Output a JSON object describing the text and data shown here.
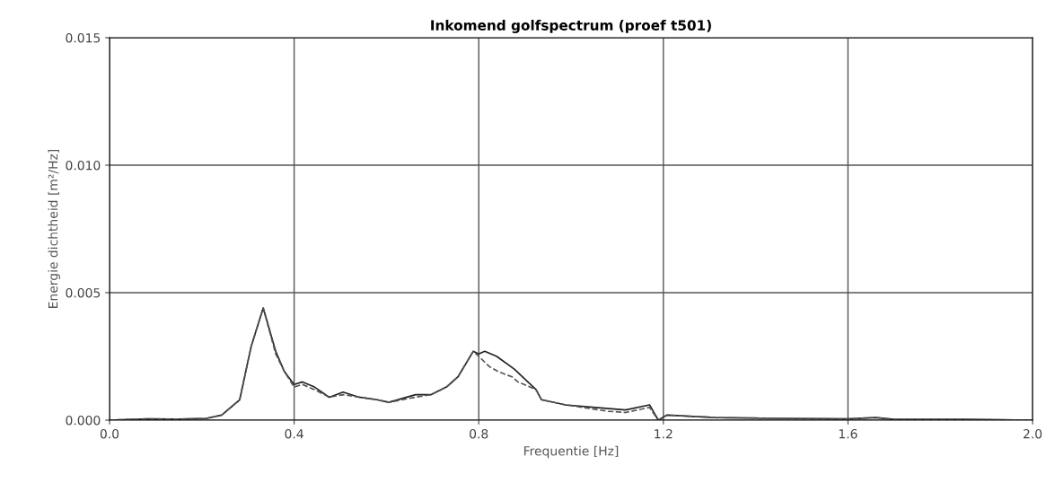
{
  "chart_data": {
    "type": "line",
    "title": "Inkomend golfspectrum (proef t501)",
    "xlabel": "Frequentie [Hz]",
    "ylabel": "Energie dichtheid [m²/Hz]",
    "xlim": [
      0,
      2
    ],
    "xticks": [
      {
        "value": 0,
        "label": "0.0"
      },
      {
        "value": 0.4,
        "label": "0.4"
      },
      {
        "value": 0.8,
        "label": "0.8"
      },
      {
        "value": 1.2,
        "label": "1.2"
      },
      {
        "value": 1.6,
        "label": "1.6"
      },
      {
        "value": 2.0,
        "label": "2.0"
      }
    ],
    "ylim": [
      0,
      0.015
    ],
    "yticks": [
      {
        "value": 0,
        "label": "0.000"
      },
      {
        "value": 0.005,
        "label": "0.005"
      },
      {
        "value": 0.01,
        "label": "0.010"
      },
      {
        "value": 0.015,
        "label": "0.015"
      }
    ],
    "grid": true,
    "series": [
      {
        "color": "#222222",
        "line_style": "solid",
        "x": [
          0,
          0.08,
          0.152,
          0.21,
          0.243,
          0.282,
          0.307,
          0.333,
          0.36,
          0.379,
          0.4,
          0.418,
          0.444,
          0.476,
          0.506,
          0.541,
          0.58,
          0.605,
          0.663,
          0.697,
          0.73,
          0.755,
          0.788,
          0.8,
          0.813,
          0.839,
          0.877,
          0.924,
          0.936,
          0.988,
          1.053,
          1.118,
          1.17,
          1.189,
          1.208,
          1.313,
          1.45,
          1.6,
          1.66,
          1.7,
          1.85,
          2.0
        ],
        "values": [
          0,
          5e-05,
          4e-05,
          7e-05,
          0.0002,
          0.0008,
          0.0029,
          0.0044,
          0.0027,
          0.0019,
          0.0014,
          0.0015,
          0.0013,
          0.0009,
          0.0011,
          0.0009,
          0.0008,
          0.0007,
          0.001,
          0.001,
          0.0013,
          0.0017,
          0.0027,
          0.0026,
          0.0027,
          0.0025,
          0.002,
          0.0012,
          0.0008,
          0.0006,
          0.0005,
          0.0004,
          0.0006,
          0,
          0.0002,
          0.0001,
          7e-05,
          5e-05,
          0.0001,
          3e-05,
          3e-05,
          0
        ]
      },
      {
        "color": "#555555",
        "line_style": "dashed",
        "x": [
          0,
          0.08,
          0.152,
          0.21,
          0.243,
          0.282,
          0.307,
          0.333,
          0.36,
          0.379,
          0.4,
          0.418,
          0.444,
          0.476,
          0.506,
          0.541,
          0.58,
          0.605,
          0.663,
          0.697,
          0.73,
          0.755,
          0.788,
          0.8,
          0.823,
          0.843,
          0.872,
          0.885,
          0.924,
          0.936,
          0.988,
          1.08,
          1.118,
          1.17,
          1.189,
          1.208,
          1.313,
          1.45,
          1.6,
          1.66,
          1.7,
          1.85,
          2.0
        ],
        "values": [
          0,
          5e-05,
          4e-05,
          7e-05,
          0.0002,
          0.0008,
          0.0029,
          0.0044,
          0.0026,
          0.0019,
          0.0013,
          0.0014,
          0.0012,
          0.0009,
          0.001,
          0.0009,
          0.0008,
          0.0007,
          0.0009,
          0.001,
          0.0013,
          0.0017,
          0.0027,
          0.0025,
          0.0021,
          0.0019,
          0.0017,
          0.0015,
          0.0012,
          0.0008,
          0.0006,
          0.00035,
          0.0003,
          0.0005,
          0,
          0.0002,
          0.0001,
          7e-05,
          5e-05,
          0.0001,
          3e-05,
          3e-05,
          0
        ]
      }
    ]
  }
}
